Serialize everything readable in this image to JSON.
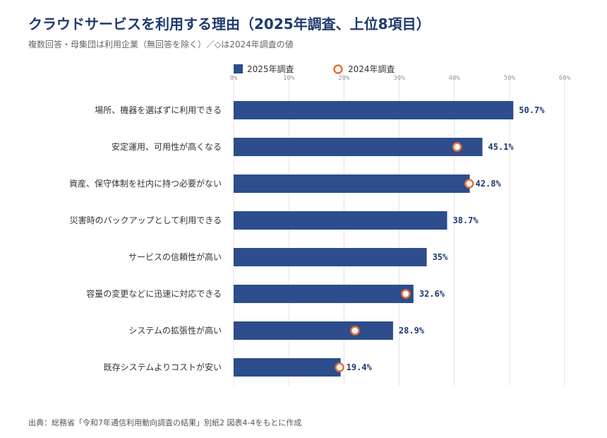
{
  "header": {
    "title": "クラウドサービスを利用する理由（2025年調査、上位8項目）",
    "subtitle": "複数回答・母集団は利用企業（無回答を除く）／◇は2024年調査の値"
  },
  "footer": {
    "source": "出典：総務省「令和7年通信利用動向調査の結果」別紙2 図表4-4をもとに作成"
  },
  "colors": {
    "bar": "#2d4d8c",
    "marker": "#e8703a",
    "grid": "#e4e4e4"
  },
  "chart_data": {
    "type": "bar",
    "orientation": "horizontal",
    "categories": [
      "場所、機器を選ばずに利用できる",
      "安定運用、可用性が高くなる",
      "資産、保守体制を社内に持つ必要がない",
      "災害時のバックアップとして利用できる",
      "サービスの信頼性が高い",
      "容量の変更などに迅速に対応できる",
      "システムの拡張性が高い",
      "既存システムよりコストが安い"
    ],
    "series": [
      {
        "name": "2025年調査",
        "values": [
          50.7,
          45.1,
          42.8,
          38.7,
          35,
          32.6,
          28.9,
          19.4
        ],
        "labels": [
          "50.7%",
          "45.1%",
          "42.8%",
          "38.7%",
          "35%",
          "32.6%",
          "28.9%",
          "19.4%"
        ]
      },
      {
        "name": "2024年調査",
        "marker": "circle",
        "values": [
          null,
          40.5,
          42.7,
          null,
          null,
          31.2,
          22.0,
          19.2
        ]
      }
    ],
    "xticks": [
      0,
      10,
      20,
      30,
      40,
      50,
      60
    ],
    "xtick_labels": [
      "0%",
      "10%",
      "20%",
      "30%",
      "40%",
      "50%",
      "60%"
    ],
    "xlim": [
      0,
      60
    ],
    "grid": true,
    "legend": "top-left"
  }
}
